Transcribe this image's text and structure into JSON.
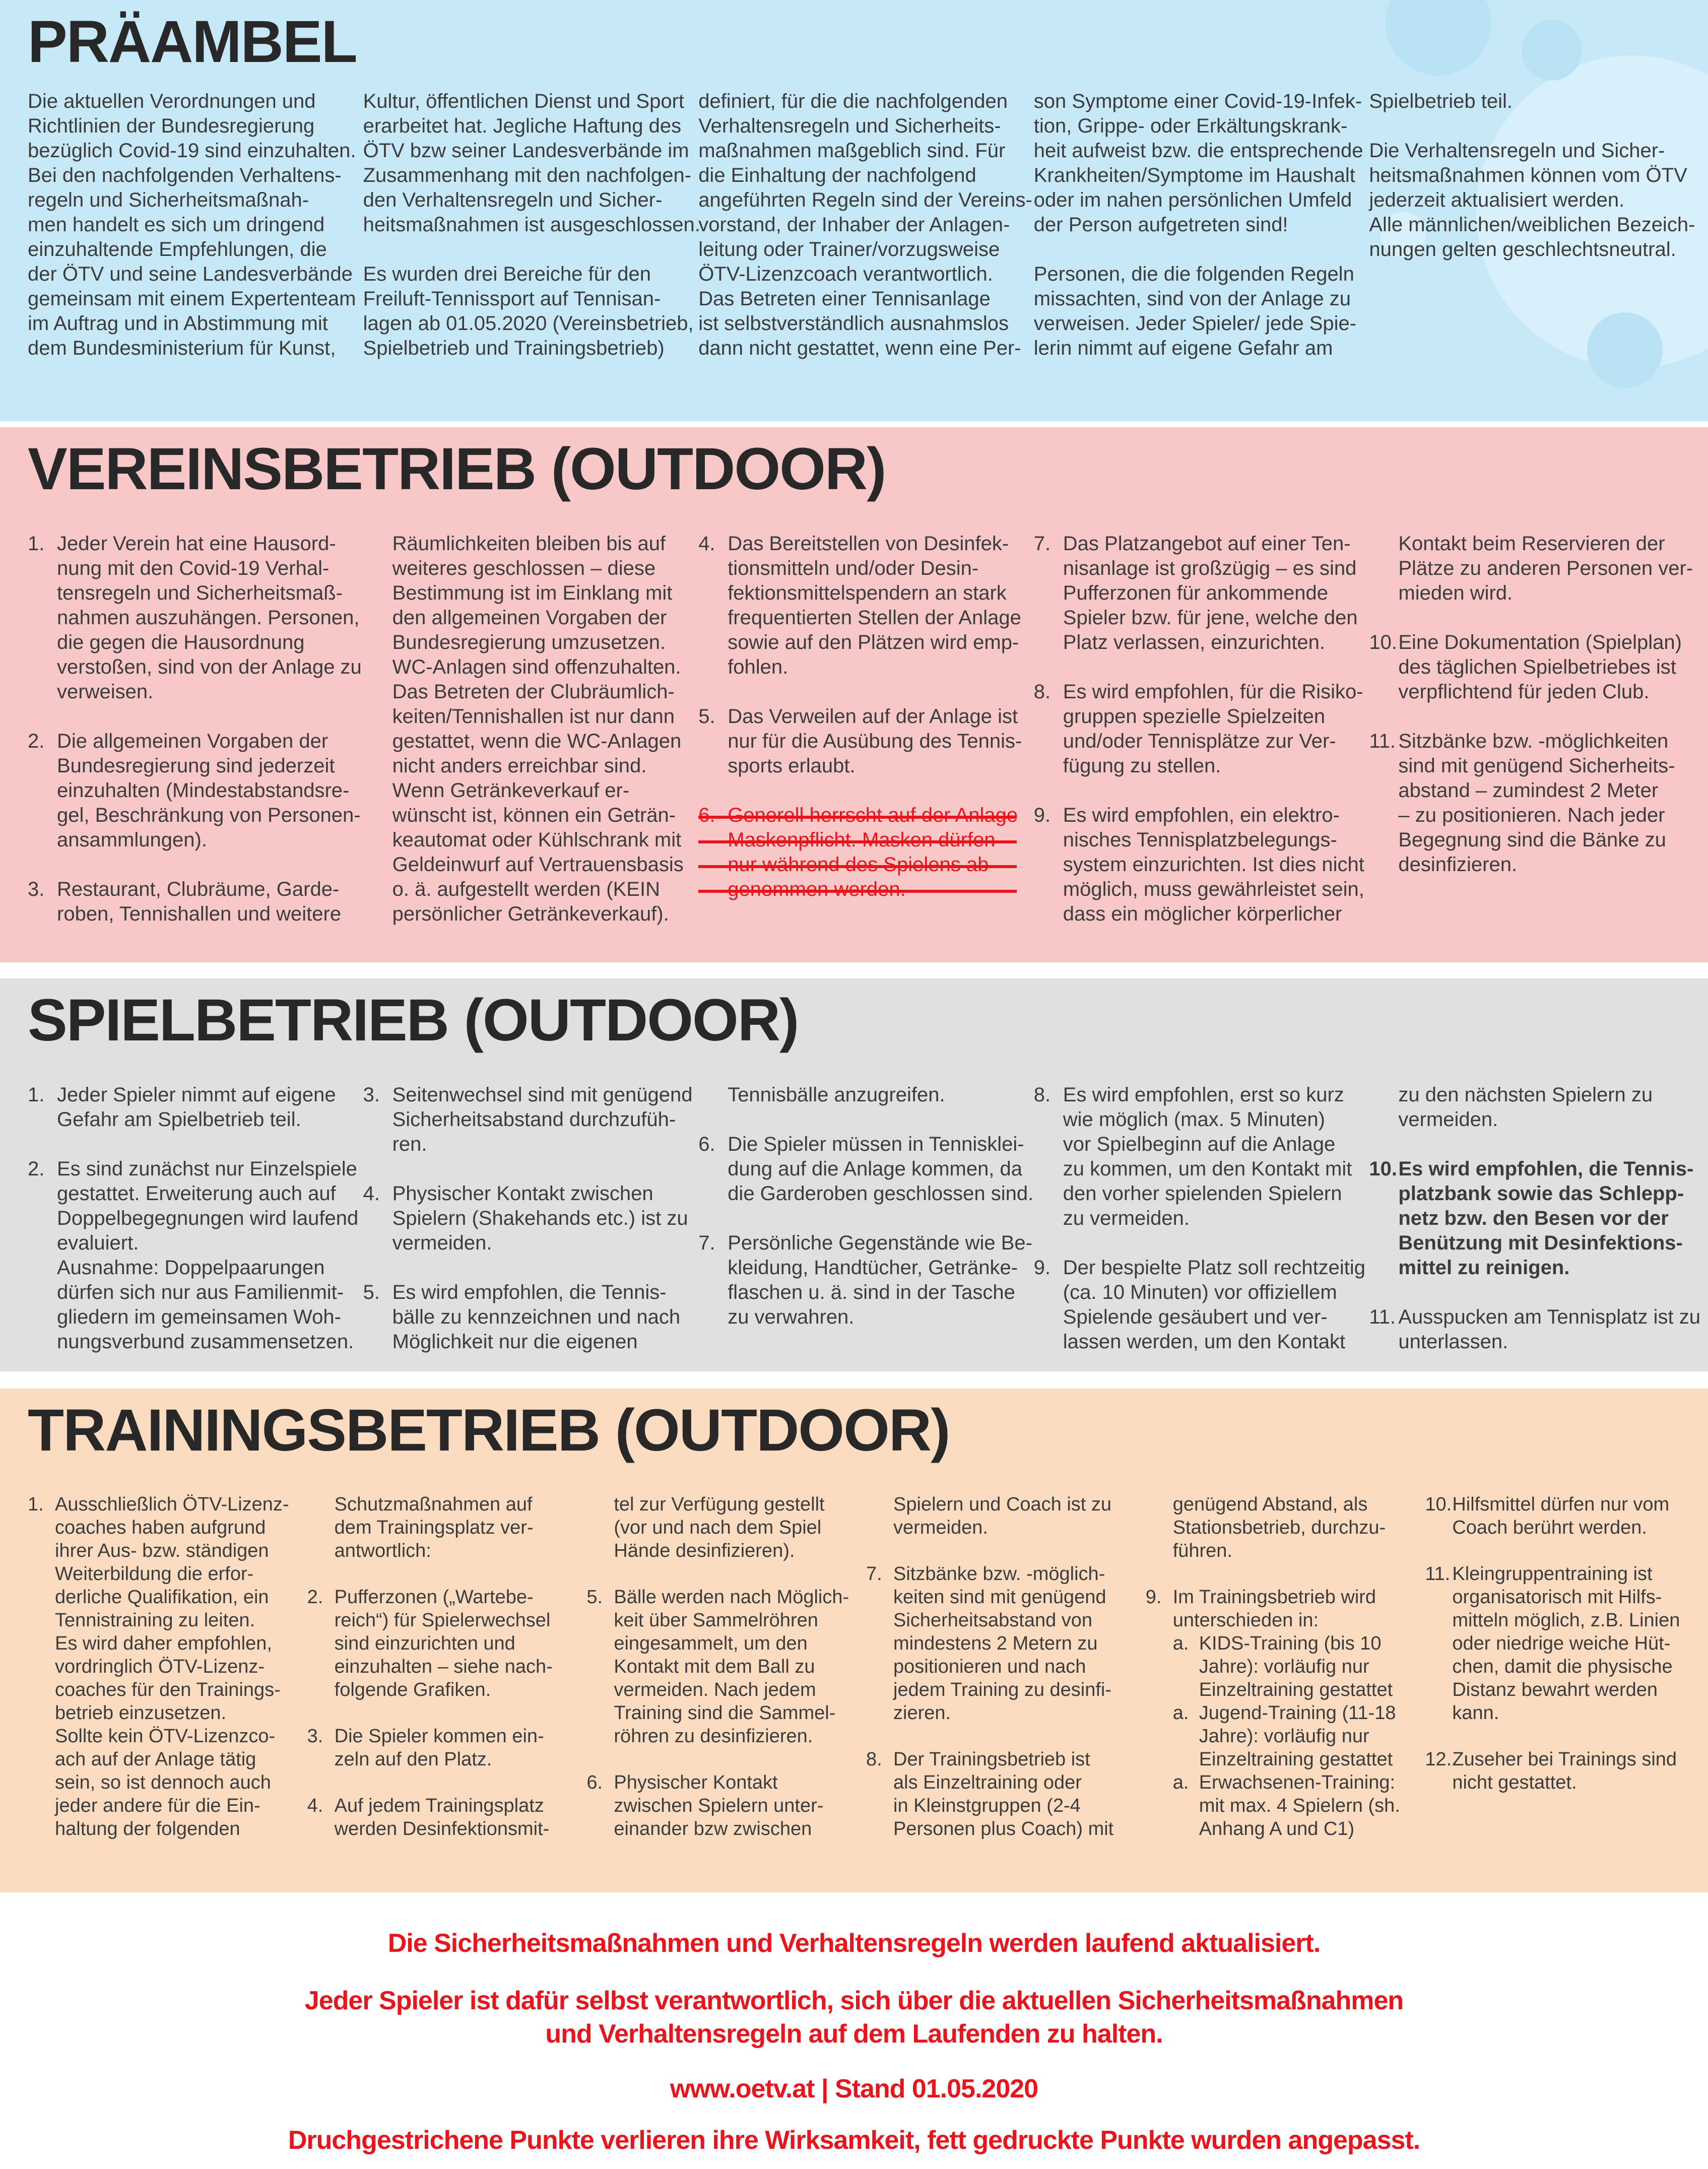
{
  "colors": {
    "praeambel_bg": "#c7e9f7",
    "vereinsbetrieb_bg": "#f8c8c8",
    "spielbetrieb_bg": "#e0e0df",
    "trainingsbetrieb_bg": "#fcdcc0",
    "accent_red": "#e8151c",
    "text": "#3c3c3c"
  },
  "sections": [
    {
      "id": "praeambel",
      "title": "PRÄAMBEL",
      "columns": [
        {
          "blocks": [
            {
              "text": "Die aktuellen Verordnungen und\nRichtlinien der Bundesregierung\nbezüglich Covid-19 sind einzuhalten.\nBei den nachfolgenden Verhaltens-\nregeln und Sicherheitsmaßnah-\nmen handelt es sich um dringend\neinzuhaltende Empfehlungen, die\nder ÖTV und seine Landesverbände\ngemeinsam mit einem Expertenteam\nim Auftrag und in Abstimmung mit\ndem Bundesministerium für Kunst,"
            }
          ]
        },
        {
          "blocks": [
            {
              "text": "Kultur, öffentlichen Dienst und Sport\nerarbeitet hat. Jegliche Haftung des\nÖTV bzw seiner Landesverbände im\nZusammenhang mit den nachfolgen-\nden Verhaltensregeln und Sicher-\nheitsmaßnahmen ist ausgeschlossen."
            },
            {
              "text": "Es wurden drei Bereiche für den\nFreiluft-Tennissport auf Tennisan-\nlagen ab 01.05.2020 (Vereinsbetrieb,\nSpielbetrieb und Trainingsbetrieb)"
            }
          ]
        },
        {
          "blocks": [
            {
              "text": "definiert, für die die nachfolgenden\nVerhaltensregeln und Sicherheits-\nmaßnahmen maßgeblich sind. Für\ndie Einhaltung der nachfolgend\nangeführten Regeln sind der Vereins-\nvorstand, der Inhaber der Anlagen-\nleitung oder Trainer/vorzugsweise\nÖTV-Lizenzcoach verantwortlich.\nDas Betreten einer Tennisanlage\nist selbstverständlich ausnahmslos\ndann nicht gestattet, wenn eine Per-"
            }
          ]
        },
        {
          "blocks": [
            {
              "text": "son Symptome einer Covid-19-Infek-\ntion, Grippe- oder Erkältungskrank-\nheit aufweist bzw. die entsprechende\nKrankheiten/Symptome im Haushalt\noder im nahen persönlichen Umfeld\nder Person aufgetreten sind!"
            },
            {
              "text": "Personen, die die folgenden Regeln\nmissachten, sind von der Anlage zu\nverweisen. Jeder Spieler/ jede Spie-\nlerin nimmt auf eigene Gefahr am"
            }
          ]
        },
        {
          "blocks": [
            {
              "text": "Spielbetrieb teil."
            },
            {
              "text": "Die Verhaltensregeln und Sicher-\nheitsmaßnahmen können vom ÖTV\njederzeit aktualisiert werden.\nAlle männlichen/weiblichen Bezeich-\nnungen gelten geschlechtsneutral."
            }
          ]
        }
      ]
    },
    {
      "id": "vereinsbetrieb",
      "title": "VEREINSBETRIEB (OUTDOOR)",
      "columns": [
        {
          "blocks": [
            {
              "num": "1.",
              "text": "Jeder Verein hat eine Hausord-\nnung mit den Covid-19 Verhal-\ntensregeln und Sicherheitsmaß-\nnahmen auszuhängen. Personen,\ndie gegen die Hausordnung\nverstoßen, sind von der Anlage zu\nverweisen."
            },
            {
              "num": "2.",
              "text": "Die allgemeinen Vorgaben der\nBundesregierung sind jederzeit\neinzuhalten (Mindestabstandsre-\ngel, Beschränkung von Personen-\nansammlungen)."
            },
            {
              "num": "3.",
              "text": "Restaurant, Clubräume, Garde-\nroben, Tennishallen und weitere"
            }
          ]
        },
        {
          "blocks": [
            {
              "indent": true,
              "text": "Räumlichkeiten bleiben bis auf\nweiteres geschlossen – diese\nBestimmung ist im Einklang mit\nden allgemeinen Vorgaben der\nBundesregierung umzusetzen.\nWC-Anlagen sind offenzuhalten.\nDas Betreten der Clubräumlich-\nkeiten/Tennishallen ist nur dann\ngestattet, wenn die WC-Anlagen\nnicht anders erreichbar sind.\nWenn Getränkeverkauf er-\nwünscht ist, können ein Geträn-\nkeautomat oder Kühlschrank mit\nGeldeinwurf auf Vertrauensbasis\no. ä. aufgestellt werden (KEIN\npersönlicher Getränkeverkauf)."
            }
          ]
        },
        {
          "blocks": [
            {
              "num": "4.",
              "text": "Das Bereitstellen von Desinfek-\ntionsmitteln und/oder Desin-\nfektionsmittelspendern an stark\nfrequentierten Stellen der Anlage\nsowie auf den Plätzen wird emp-\nfohlen."
            },
            {
              "num": "5.",
              "text": "Das Verweilen auf der Anlage ist\nnur für die Ausübung des Tennis-\nsports erlaubt."
            },
            {
              "num": "6.",
              "struck": true,
              "text": "Generell herrscht auf der Anlage\nMaskenpflicht. Masken dürfen\nnur während des Spielens ab\ngenommen werden."
            }
          ]
        },
        {
          "blocks": [
            {
              "num": "7.",
              "text": "Das Platzangebot auf einer Ten-\nnisanlage ist großzügig – es sind\nPufferzonen für ankommende\nSpieler bzw. für jene, welche den\nPlatz verlassen, einzurichten."
            },
            {
              "num": "8.",
              "text": "Es wird empfohlen, für die Risiko-\ngruppen spezielle Spielzeiten\nund/oder Tennisplätze zur Ver-\nfügung zu stellen."
            },
            {
              "num": "9.",
              "text": "Es wird empfohlen, ein elektro-\nnisches Tennisplatzbelegungs-\nsystem einzurichten. Ist dies nicht\nmöglich, muss gewährleistet sein,\ndass ein möglicher körperlicher"
            }
          ]
        },
        {
          "blocks": [
            {
              "indent": true,
              "text": "Kontakt beim Reservieren der\nPlätze zu anderen Personen ver-\nmieden wird."
            },
            {
              "num": "10.",
              "text": "Eine Dokumentation (Spielplan)\ndes täglichen Spielbetriebes ist\nverpflichtend für jeden Club."
            },
            {
              "num": "11.",
              "text": "Sitzbänke bzw. -möglichkeiten\nsind mit genügend Sicherheits-\nabstand – zumindest 2 Meter\n– zu positionieren. Nach jeder\nBegegnung sind die Bänke zu\ndesinfizieren."
            }
          ]
        }
      ]
    },
    {
      "id": "spielbetrieb",
      "title": "SPIELBETRIEB (OUTDOOR)",
      "columns": [
        {
          "blocks": [
            {
              "num": "1.",
              "text": "Jeder Spieler nimmt auf eigene\nGefahr am Spielbetrieb teil."
            },
            {
              "num": "2.",
              "text": "Es sind zunächst nur Einzelspiele\ngestattet. Erweiterung auch auf\nDoppelbegegnungen wird laufend\nevaluiert.\nAusnahme: Doppelpaarungen\ndürfen sich nur aus Familienmit-\ngliedern im gemeinsamen Woh-\nnungsverbund zusammensetzen."
            }
          ]
        },
        {
          "blocks": [
            {
              "num": "3.",
              "text": "Seitenwechsel sind mit genügend\nSicherheitsabstand durchzufüh-\nren."
            },
            {
              "num": "4.",
              "text": "Physischer Kontakt zwischen\nSpielern (Shakehands etc.) ist zu\nvermeiden."
            },
            {
              "num": "5.",
              "text": "Es wird empfohlen, die Tennis-\nbälle zu kennzeichnen und nach\nMöglichkeit nur die eigenen"
            }
          ]
        },
        {
          "blocks": [
            {
              "indent": true,
              "text": "Tennisbälle anzugreifen."
            },
            {
              "num": "6.",
              "text": "Die Spieler müssen in Tennisklei-\ndung auf die Anlage kommen, da\ndie Garderoben geschlossen sind."
            },
            {
              "num": "7.",
              "text": "Persönliche Gegenstände wie Be-\nkleidung, Handtücher, Getränke-\nflaschen u. ä. sind in der Tasche\nzu verwahren."
            }
          ]
        },
        {
          "blocks": [
            {
              "num": "8.",
              "text": "Es wird empfohlen, erst so kurz\nwie möglich (max. 5 Minuten)\nvor Spielbeginn auf die Anlage\nzu kommen, um den Kontakt mit\nden vorher spielenden Spielern\nzu vermeiden."
            },
            {
              "num": "9.",
              "text": "Der bespielte Platz soll rechtzeitig\n(ca. 10 Minuten) vor offiziellem\nSpielende gesäubert und ver-\nlassen werden, um den Kontakt"
            }
          ]
        },
        {
          "blocks": [
            {
              "indent": true,
              "text": "zu den nächsten Spielern zu\nvermeiden."
            },
            {
              "num": "10.",
              "bold": true,
              "text": "Es wird empfohlen, die Tennis-\nplatzbank sowie das Schlepp-\nnetz bzw. den Besen vor der\nBenützung mit Desinfektions-\nmittel zu reinigen."
            },
            {
              "num": "11.",
              "text": "Ausspucken am Tennisplatz ist zu\nunterlassen."
            }
          ]
        }
      ]
    },
    {
      "id": "trainingsbetrieb",
      "title": "TRAININGSBETRIEB (OUTDOOR)",
      "columns": [
        {
          "blocks": [
            {
              "num": "1.",
              "text": "Ausschließlich ÖTV-Lizenz-\ncoaches haben aufgrund\nihrer Aus- bzw. ständigen\nWeiterbildung die erfor-\nderliche Qualifikation, ein\nTennistraining zu leiten.\nEs wird daher empfohlen,\nvordringlich ÖTV-Lizenz-\ncoaches für den Trainings-\nbetrieb einzusetzen.\nSollte kein ÖTV-Lizenzco-\nach auf der Anlage tätig\nsein, so ist dennoch auch\njeder andere für die Ein-\nhaltung der folgenden"
            }
          ]
        },
        {
          "blocks": [
            {
              "indent": true,
              "text": "Schutzmaßnahmen auf\ndem Trainingsplatz ver-\nantwortlich:"
            },
            {
              "num": "2.",
              "text": "Pufferzonen („Wartebe-\nreich“) für Spielerwechsel\nsind einzurichten und\neinzuhalten – siehe nach-\nfolgende Grafiken."
            },
            {
              "num": "3.",
              "text": "Die Spieler kommen ein-\nzeln auf den Platz."
            },
            {
              "num": "4.",
              "text": "Auf jedem Trainingsplatz\nwerden Desinfektionsmit-"
            }
          ]
        },
        {
          "blocks": [
            {
              "indent": true,
              "text": "tel zur Verfügung gestellt\n(vor und nach dem Spiel\nHände desinfizieren)."
            },
            {
              "num": "5.",
              "text": "Bälle werden nach Möglich-\nkeit über Sammelröhren\neingesammelt, um den\nKontakt mit dem Ball zu\nvermeiden. Nach jedem\nTraining sind die Sammel-\nröhren zu desinfizieren."
            },
            {
              "num": "6.",
              "text": "Physischer Kontakt\nzwischen Spielern unter-\neinander bzw zwischen"
            }
          ]
        },
        {
          "blocks": [
            {
              "indent": true,
              "text": "Spielern und Coach ist zu\nvermeiden."
            },
            {
              "num": "7.",
              "text": "Sitzbänke bzw. -möglich-\nkeiten sind mit genügend\nSicherheitsabstand von\nmindestens 2 Metern zu\npositionieren und nach\njedem Training zu desinfi-\nzieren."
            },
            {
              "num": "8.",
              "text": "Der Trainingsbetrieb ist\nals Einzeltraining oder\nin Kleinstgruppen (2-4\nPersonen plus Coach) mit"
            }
          ]
        },
        {
          "blocks": [
            {
              "indent": true,
              "text": "genügend Abstand, als\nStationsbetrieb, durchzu-\nführen."
            },
            {
              "num": "9.",
              "text": "Im Trainingsbetrieb wird\nunterschieden in:",
              "subs": [
                {
                  "num": "a.",
                  "text": "KIDS-Training (bis 10\nJahre): vorläufig nur\nEinzeltraining gestattet"
                },
                {
                  "num": "a.",
                  "text": "Jugend-Training (11-18\nJahre): vorläufig nur\nEinzeltraining gestattet"
                },
                {
                  "num": "a.",
                  "text": "Erwachsenen-Training:\nmit max. 4 Spielern (sh.\nAnhang A und C1)"
                }
              ]
            }
          ]
        },
        {
          "blocks": [
            {
              "num": "10.",
              "text": "Hilfsmittel dürfen nur vom\nCoach berührt werden."
            },
            {
              "num": "11.",
              "text": "Kleingruppentraining ist\norganisatorisch mit Hilfs-\nmitteln möglich, z.B. Linien\noder niedrige weiche Hüt-\nchen, damit die physische\nDistanz bewahrt werden\nkann."
            },
            {
              "num": "12.",
              "text": "Zuseher bei Trainings sind\nnicht gestattet."
            }
          ]
        }
      ]
    }
  ],
  "footer": {
    "line1": "Die Sicherheitsmaßnahmen und Verhaltensregeln werden laufend aktualisiert.",
    "line2": "Jeder Spieler ist dafür selbst verantwortlich, sich über die aktuellen Sicherheitsmaßnahmen\nund Verhaltensregeln auf dem Laufenden zu halten.",
    "line3": "www.oetv.at | Stand 01.05.2020",
    "line4": "Druchgestrichene Punkte verlieren ihre Wirksamkeit, fett gedruckte Punkte wurden angepasst."
  }
}
